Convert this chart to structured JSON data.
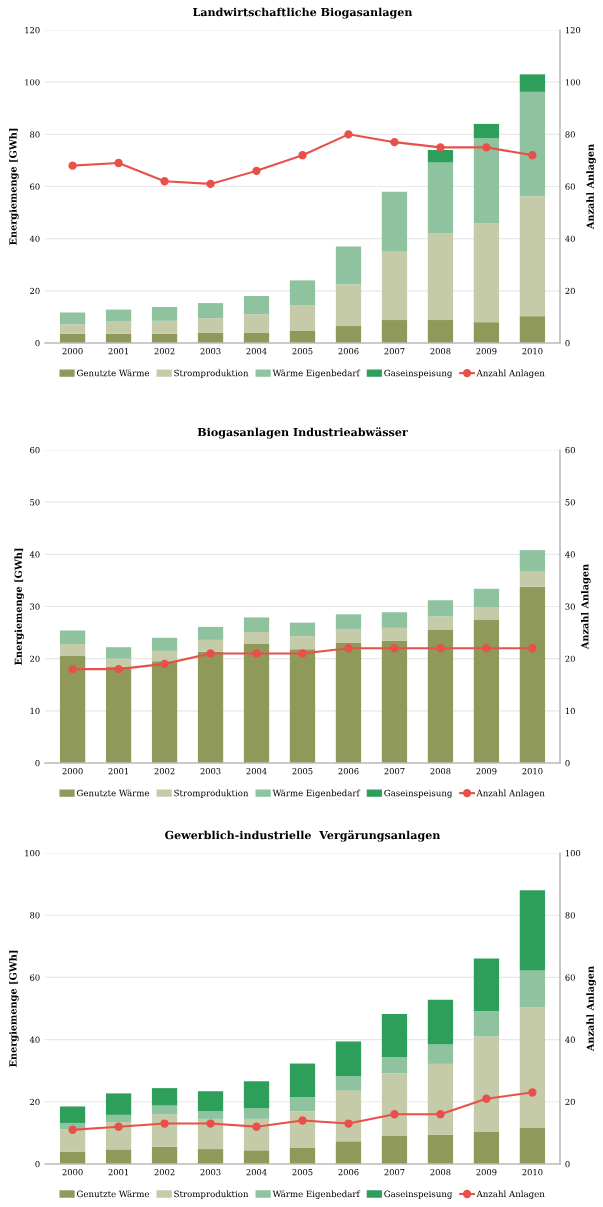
{
  "chart_data": [
    {
      "type": "bar",
      "stacked": true,
      "title": "Landwirtschaftliche Biogasanlagen",
      "ylabel": "Energiemenge [GWh]",
      "y2label": "Anzahl Anlagen",
      "categories": [
        "2000",
        "2001",
        "2002",
        "2003",
        "2004",
        "2005",
        "2006",
        "2007",
        "2008",
        "2009",
        "2010"
      ],
      "ylim": [
        0,
        120
      ],
      "yticks": [
        0,
        20,
        40,
        60,
        80,
        100,
        120
      ],
      "y2lim": [
        0,
        120
      ],
      "y2ticks": [
        0,
        20,
        40,
        60,
        80,
        100,
        120
      ],
      "grid": "y",
      "legend": "bottom",
      "series": [
        {
          "name": "Genutzte Wärme",
          "color": "#8f9a5a",
          "values": [
            3.5,
            3.5,
            3.5,
            4,
            4,
            4.8,
            6.5,
            8.8,
            8.8,
            8,
            10.3
          ]
        },
        {
          "name": "Stromproduktion",
          "color": "#c5cba8",
          "values": [
            3.7,
            4.7,
            5,
            5.5,
            7,
            9.7,
            16,
            26.5,
            33.2,
            37.8,
            46
          ]
        },
        {
          "name": "Wärme Eigenbedarf",
          "color": "#8fc29f",
          "values": [
            4.5,
            4.6,
            5.3,
            5.8,
            7,
            9.5,
            14.5,
            22.7,
            27.2,
            32.7,
            40
          ]
        },
        {
          "name": "Gaseinspeisung",
          "color": "#2e9e5b",
          "values": [
            0,
            0,
            0,
            0,
            0,
            0,
            0,
            0,
            4.8,
            5.5,
            6.7
          ]
        },
        {
          "name": "Anzahl Anlagen",
          "color": "#e8504a",
          "type": "line",
          "axis": "y2",
          "marker": "circle",
          "values": [
            68,
            69,
            62,
            61,
            66,
            72,
            80,
            77,
            75,
            75,
            72
          ]
        }
      ]
    },
    {
      "type": "bar",
      "stacked": true,
      "title": "Biogasanlagen Industrieabwässer",
      "ylabel": "Energiemenge [GWh]",
      "y2label": "Anzahl Anlagen",
      "categories": [
        "2000",
        "2001",
        "2002",
        "2003",
        "2004",
        "2005",
        "2006",
        "2007",
        "2008",
        "2009",
        "2010"
      ],
      "ylim": [
        0,
        60
      ],
      "yticks": [
        0,
        10,
        20,
        30,
        40,
        50,
        60
      ],
      "y2lim": [
        0,
        60
      ],
      "y2ticks": [
        0,
        10,
        20,
        30,
        40,
        50,
        60
      ],
      "grid": "y",
      "legend": "bottom",
      "series": [
        {
          "name": "Genutzte Wärme",
          "color": "#8f9a5a",
          "values": [
            20.5,
            18.5,
            19.5,
            21.3,
            22.8,
            21.8,
            23,
            23.4,
            25.5,
            27.4,
            33.8
          ]
        },
        {
          "name": "Stromproduktion",
          "color": "#c5cba8",
          "values": [
            2.3,
            1.5,
            2,
            2.3,
            2.3,
            2.5,
            2.7,
            2.5,
            2.6,
            2.5,
            3
          ]
        },
        {
          "name": "Wärme Eigenbedarf",
          "color": "#8fc29f",
          "values": [
            2.6,
            2.2,
            2.5,
            2.5,
            2.8,
            2.6,
            2.8,
            3,
            3.1,
            3.5,
            4
          ]
        },
        {
          "name": "Gaseinspeisung",
          "color": "#2e9e5b",
          "values": [
            0,
            0,
            0,
            0,
            0,
            0,
            0,
            0,
            0,
            0,
            0
          ]
        },
        {
          "name": "Anzahl Anlagen",
          "color": "#e8504a",
          "type": "line",
          "axis": "y2",
          "marker": "circle",
          "values": [
            18,
            18,
            19,
            21,
            21,
            21,
            22,
            22,
            22,
            22,
            22
          ]
        }
      ]
    },
    {
      "type": "bar",
      "stacked": true,
      "title": "Gewerblich-industrielle  Vergärungsanlagen",
      "ylabel": "Energiemenge [GWh]",
      "y2label": "Anzahl Anlagen",
      "categories": [
        "2000",
        "2001",
        "2002",
        "2003",
        "2004",
        "2005",
        "2006",
        "2007",
        "2008",
        "2009",
        "2010"
      ],
      "ylim": [
        0,
        100
      ],
      "yticks": [
        0,
        20,
        40,
        60,
        80,
        100
      ],
      "y2lim": [
        0,
        100
      ],
      "y2ticks": [
        0,
        20,
        40,
        60,
        80,
        100
      ],
      "grid": "y",
      "legend": "bottom",
      "series": [
        {
          "name": "Genutzte Wärme",
          "color": "#8f9a5a",
          "values": [
            4,
            4.7,
            5.6,
            4.8,
            4.4,
            5.3,
            7.3,
            9,
            9.4,
            10.3,
            11.6
          ]
        },
        {
          "name": "Stromproduktion",
          "color": "#c5cba8",
          "values": [
            7.2,
            8.8,
            10.3,
            9.7,
            10.1,
            11.7,
            16.3,
            20.2,
            22.8,
            30.7,
            38.7
          ]
        },
        {
          "name": "Wärme Eigenbedarf",
          "color": "#8fc29f",
          "values": [
            2,
            2.3,
            2.9,
            2.5,
            3.4,
            4.5,
            4.6,
            5.2,
            6.2,
            8.1,
            11.9
          ]
        },
        {
          "name": "Gaseinspeisung",
          "color": "#2e9e5b",
          "values": [
            5.3,
            6.9,
            5.6,
            6.4,
            8.7,
            10.8,
            11.2,
            13.8,
            14.4,
            17,
            25.8
          ]
        },
        {
          "name": "Anzahl Anlagen",
          "color": "#e8504a",
          "type": "line",
          "axis": "y2",
          "marker": "circle",
          "values": [
            11,
            12,
            13,
            13,
            12,
            14,
            13,
            16,
            16,
            21,
            23
          ]
        }
      ]
    }
  ]
}
